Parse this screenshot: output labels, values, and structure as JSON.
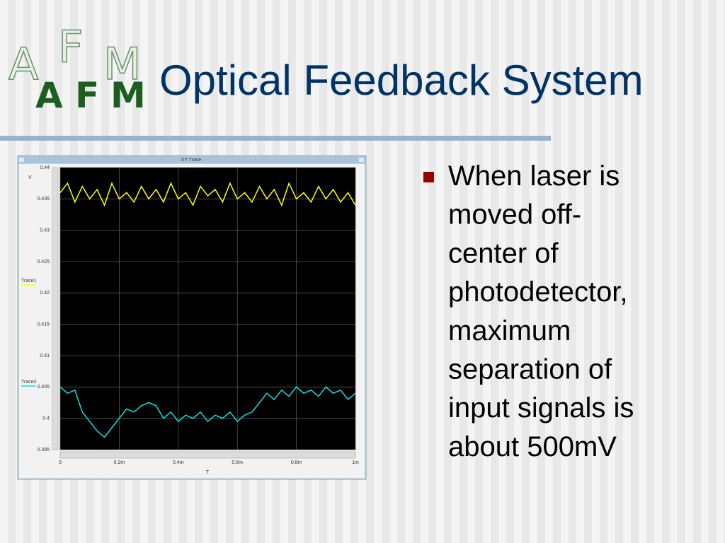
{
  "slide": {
    "title": "Optical Feedback System",
    "logo": [
      "A",
      "F",
      "M"
    ],
    "bullet_lines": [
      "When laser is",
      "moved off-",
      "center of",
      "photodetector,",
      "maximum",
      "separation of",
      "input signals is",
      "about 500mV"
    ]
  },
  "chart_data": {
    "type": "line",
    "title": "XY Trace",
    "y_label": "V",
    "x_label": "T",
    "x": [
      0,
      2.5e-05,
      5e-05,
      7.5e-05,
      0.0001,
      0.000125,
      0.00015,
      0.000175,
      0.0002,
      0.000225,
      0.00025,
      0.000275,
      0.0003,
      0.000325,
      0.00035,
      0.000375,
      0.0004,
      0.000425,
      0.00045,
      0.000475,
      0.0005,
      0.000525,
      0.00055,
      0.000575,
      0.0006,
      0.000625,
      0.00065,
      0.000675,
      0.0007,
      0.000725,
      0.00075,
      0.000775,
      0.0008,
      0.000825,
      0.00085,
      0.000875,
      0.0009,
      0.000925,
      0.00095,
      0.000975,
      0.001
    ],
    "series": [
      {
        "name": "Trace1",
        "color": "#ffff00",
        "values": [
          0.436,
          0.4375,
          0.4345,
          0.437,
          0.435,
          0.4365,
          0.434,
          0.4375,
          0.435,
          0.436,
          0.4345,
          0.437,
          0.435,
          0.4365,
          0.4345,
          0.4375,
          0.435,
          0.436,
          0.434,
          0.437,
          0.4355,
          0.4365,
          0.4345,
          0.4375,
          0.435,
          0.436,
          0.4345,
          0.437,
          0.435,
          0.4365,
          0.434,
          0.4375,
          0.435,
          0.436,
          0.4345,
          0.437,
          0.435,
          0.4365,
          0.4345,
          0.436,
          0.434
        ]
      },
      {
        "name": "Trace2",
        "color": "#00e5e5",
        "values": [
          0.405,
          0.404,
          0.4045,
          0.401,
          0.3995,
          0.398,
          0.397,
          0.3985,
          0.4,
          0.4015,
          0.401,
          0.402,
          0.4025,
          0.402,
          0.4,
          0.401,
          0.3995,
          0.4005,
          0.4,
          0.401,
          0.3995,
          0.4005,
          0.4,
          0.401,
          0.3995,
          0.4005,
          0.401,
          0.4025,
          0.404,
          0.403,
          0.4045,
          0.4035,
          0.405,
          0.404,
          0.4045,
          0.4035,
          0.405,
          0.404,
          0.4045,
          0.403,
          0.404
        ]
      }
    ],
    "xlim": [
      0,
      0.001
    ],
    "xticks": [
      0,
      {
        "value": 0.0002,
        "label": "0.2m"
      },
      {
        "value": 0.0004,
        "label": "0.4m"
      },
      {
        "value": 0.0006,
        "label": "0.6m"
      },
      {
        "value": 0.0008,
        "label": "0.8m"
      },
      {
        "value": 0.001,
        "label": "1m"
      }
    ],
    "ylim": [
      0.395,
      0.44
    ],
    "yticks": [
      0.395,
      0.4,
      0.405,
      0.41,
      0.415,
      0.42,
      0.425,
      0.43,
      0.435,
      0.44
    ],
    "grid": true
  }
}
